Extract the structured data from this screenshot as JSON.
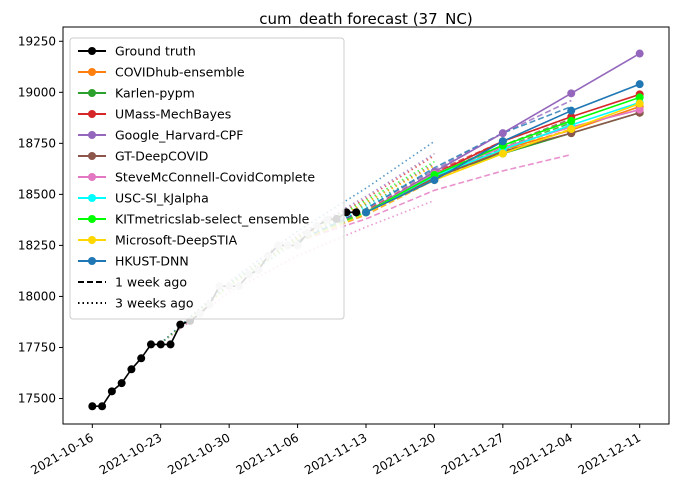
{
  "chart_data": {
    "type": "line",
    "title": "cum_death forecast (37_NC)",
    "xlabel": "",
    "ylabel": "",
    "x_ticks": [
      "2021-10-16",
      "2021-10-23",
      "2021-10-30",
      "2021-11-06",
      "2021-11-13",
      "2021-11-20",
      "2021-11-27",
      "2021-12-04",
      "2021-12-11"
    ],
    "y_ticks": [
      17500,
      17750,
      18000,
      18250,
      18500,
      18750,
      19000,
      19250
    ],
    "xlim": [
      "2021-10-13",
      "2021-12-14"
    ],
    "ylim": [
      17375,
      19320
    ],
    "legend_position": "top-left",
    "grid": false,
    "ground_truth": {
      "name": "Ground truth",
      "color": "#000000",
      "points": [
        [
          "2021-10-16",
          17462
        ],
        [
          "2021-10-17",
          17462
        ],
        [
          "2021-10-18",
          17535
        ],
        [
          "2021-10-19",
          17575
        ],
        [
          "2021-10-20",
          17643
        ],
        [
          "2021-10-21",
          17697
        ],
        [
          "2021-10-22",
          17765
        ],
        [
          "2021-10-23",
          17765
        ],
        [
          "2021-10-24",
          17765
        ],
        [
          "2021-10-25",
          17862
        ],
        [
          "2021-10-26",
          17880
        ],
        [
          "2021-10-27",
          17915
        ],
        [
          "2021-10-28",
          17960
        ],
        [
          "2021-10-29",
          18050
        ],
        [
          "2021-10-30",
          18050
        ],
        [
          "2021-10-31",
          18050
        ],
        [
          "2021-11-01",
          18107
        ],
        [
          "2021-11-02",
          18130
        ],
        [
          "2021-11-03",
          18200
        ],
        [
          "2021-11-04",
          18250
        ],
        [
          "2021-11-05",
          18250
        ],
        [
          "2021-11-06",
          18250
        ],
        [
          "2021-11-07",
          18310
        ],
        [
          "2021-11-08",
          18345
        ],
        [
          "2021-11-09",
          18375
        ],
        [
          "2021-11-10",
          18380
        ],
        [
          "2021-11-11",
          18412
        ],
        [
          "2021-11-12",
          18412
        ]
      ]
    },
    "series": [
      {
        "name": "COVIDhub-ensemble",
        "color": "#ff7f0e",
        "points": [
          [
            "2021-11-13",
            18412
          ],
          [
            "2021-11-20",
            18580
          ],
          [
            "2021-11-27",
            18720
          ],
          [
            "2021-12-04",
            18815
          ],
          [
            "2021-12-11",
            18930
          ]
        ],
        "one_week_ago": [
          [
            "2021-11-06",
            18270
          ],
          [
            "2021-11-13",
            18400
          ],
          [
            "2021-11-20",
            18570
          ],
          [
            "2021-11-27",
            18715
          ],
          [
            "2021-12-04",
            18820
          ]
        ],
        "three_weeks_ago": [
          [
            "2021-10-23",
            17770
          ],
          [
            "2021-10-30",
            18050
          ],
          [
            "2021-11-06",
            18280
          ],
          [
            "2021-11-13",
            18460
          ],
          [
            "2021-11-20",
            18640
          ]
        ]
      },
      {
        "name": "Karlen-pypm",
        "color": "#2ca02c",
        "points": [
          [
            "2021-11-13",
            18412
          ],
          [
            "2021-11-20",
            18590
          ],
          [
            "2021-11-27",
            18700
          ],
          [
            "2021-12-04",
            18800
          ],
          [
            "2021-12-11",
            18900
          ]
        ],
        "one_week_ago": [
          [
            "2021-11-06",
            18270
          ],
          [
            "2021-11-13",
            18410
          ],
          [
            "2021-11-20",
            18580
          ],
          [
            "2021-11-27",
            18730
          ],
          [
            "2021-12-04",
            18850
          ]
        ],
        "three_weeks_ago": [
          [
            "2021-10-23",
            17770
          ],
          [
            "2021-10-30",
            18050
          ],
          [
            "2021-11-06",
            18270
          ],
          [
            "2021-11-13",
            18450
          ],
          [
            "2021-11-20",
            18620
          ]
        ]
      },
      {
        "name": "UMass-MechBayes",
        "color": "#d62728",
        "points": [
          [
            "2021-11-13",
            18412
          ],
          [
            "2021-11-20",
            18600
          ],
          [
            "2021-11-27",
            18760
          ],
          [
            "2021-12-04",
            18880
          ],
          [
            "2021-12-11",
            18990
          ]
        ],
        "one_week_ago": [
          [
            "2021-11-06",
            18270
          ],
          [
            "2021-11-13",
            18420
          ],
          [
            "2021-11-20",
            18610
          ],
          [
            "2021-11-27",
            18760
          ],
          [
            "2021-12-04",
            18880
          ]
        ],
        "three_weeks_ago": [
          [
            "2021-10-23",
            17770
          ],
          [
            "2021-10-30",
            18060
          ],
          [
            "2021-11-06",
            18290
          ],
          [
            "2021-11-13",
            18480
          ],
          [
            "2021-11-20",
            18690
          ]
        ]
      },
      {
        "name": "Google_Harvard-CPF",
        "color": "#9467bd",
        "points": [
          [
            "2021-11-13",
            18412
          ],
          [
            "2021-11-20",
            18610
          ],
          [
            "2021-11-27",
            18800
          ],
          [
            "2021-12-04",
            18995
          ],
          [
            "2021-12-11",
            19190
          ]
        ],
        "one_week_ago": [
          [
            "2021-11-06",
            18270
          ],
          [
            "2021-11-13",
            18430
          ],
          [
            "2021-11-20",
            18620
          ],
          [
            "2021-11-27",
            18800
          ],
          [
            "2021-12-04",
            18960
          ]
        ],
        "three_weeks_ago": [
          [
            "2021-10-23",
            17770
          ],
          [
            "2021-10-30",
            18060
          ],
          [
            "2021-11-06",
            18300
          ],
          [
            "2021-11-13",
            18490
          ],
          [
            "2021-11-20",
            18700
          ]
        ]
      },
      {
        "name": "GT-DeepCOVID",
        "color": "#8c564b",
        "points": [
          [
            "2021-11-13",
            18412
          ],
          [
            "2021-11-20",
            18580
          ],
          [
            "2021-11-27",
            18710
          ],
          [
            "2021-12-04",
            18800
          ],
          [
            "2021-12-11",
            18900
          ]
        ],
        "one_week_ago": [
          [
            "2021-11-06",
            18270
          ],
          [
            "2021-11-13",
            18410
          ],
          [
            "2021-11-20",
            18600
          ],
          [
            "2021-11-27",
            18740
          ],
          [
            "2021-12-04",
            18870
          ]
        ],
        "three_weeks_ago": [
          [
            "2021-10-23",
            17770
          ],
          [
            "2021-10-30",
            18050
          ],
          [
            "2021-11-06",
            18280
          ],
          [
            "2021-11-13",
            18460
          ],
          [
            "2021-11-20",
            18650
          ]
        ]
      },
      {
        "name": "SteveMcConnell-CovidComplete",
        "color": "#e377c2",
        "points": [
          [
            "2021-11-13",
            18412
          ],
          [
            "2021-11-20",
            18600
          ],
          [
            "2021-11-27",
            18730
          ],
          [
            "2021-12-04",
            18830
          ],
          [
            "2021-12-11",
            18915
          ]
        ],
        "one_week_ago": [
          [
            "2021-11-06",
            18270
          ],
          [
            "2021-11-13",
            18380
          ],
          [
            "2021-11-20",
            18520
          ],
          [
            "2021-11-27",
            18615
          ],
          [
            "2021-12-04",
            18695
          ]
        ],
        "three_weeks_ago": [
          [
            "2021-10-23",
            17770
          ],
          [
            "2021-10-30",
            18020
          ],
          [
            "2021-11-06",
            18200
          ],
          [
            "2021-11-13",
            18340
          ],
          [
            "2021-11-20",
            18470
          ]
        ]
      },
      {
        "name": "USC-SI_kJalpha",
        "color": "#00ffff",
        "points": [
          [
            "2021-11-13",
            18412
          ],
          [
            "2021-11-20",
            18590
          ],
          [
            "2021-11-27",
            18720
          ],
          [
            "2021-12-04",
            18840
          ],
          [
            "2021-12-11",
            18950
          ]
        ],
        "one_week_ago": [
          [
            "2021-11-06",
            18270
          ],
          [
            "2021-11-13",
            18410
          ],
          [
            "2021-11-20",
            18580
          ],
          [
            "2021-11-27",
            18720
          ],
          [
            "2021-12-04",
            18840
          ]
        ],
        "three_weeks_ago": [
          [
            "2021-10-23",
            17770
          ],
          [
            "2021-10-30",
            18050
          ],
          [
            "2021-11-06",
            18270
          ],
          [
            "2021-11-13",
            18440
          ],
          [
            "2021-11-20",
            18620
          ]
        ]
      },
      {
        "name": "KITmetricslab-select_ensemble",
        "color": "#00ff00",
        "points": [
          [
            "2021-11-13",
            18412
          ],
          [
            "2021-11-20",
            18595
          ],
          [
            "2021-11-27",
            18740
          ],
          [
            "2021-12-04",
            18860
          ],
          [
            "2021-12-11",
            18975
          ]
        ],
        "one_week_ago": [
          [
            "2021-11-06",
            18270
          ],
          [
            "2021-11-13",
            18415
          ],
          [
            "2021-11-20",
            18590
          ],
          [
            "2021-11-27",
            18740
          ],
          [
            "2021-12-04",
            18860
          ]
        ],
        "three_weeks_ago": [
          [
            "2021-10-23",
            17770
          ],
          [
            "2021-10-30",
            18060
          ],
          [
            "2021-11-06",
            18290
          ],
          [
            "2021-11-13",
            18470
          ],
          [
            "2021-11-20",
            18660
          ]
        ]
      },
      {
        "name": "Microsoft-DeepSTIA",
        "color": "#ffd700",
        "points": [
          [
            "2021-11-13",
            18412
          ],
          [
            "2021-11-20",
            18570
          ],
          [
            "2021-11-27",
            18700
          ],
          [
            "2021-12-04",
            18820
          ],
          [
            "2021-12-11",
            18945
          ]
        ],
        "one_week_ago": [
          [
            "2021-11-06",
            18270
          ],
          [
            "2021-11-13",
            18405
          ],
          [
            "2021-11-20",
            18570
          ],
          [
            "2021-11-27",
            18710
          ],
          [
            "2021-12-04",
            18840
          ]
        ],
        "three_weeks_ago": [
          [
            "2021-10-23",
            17770
          ],
          [
            "2021-10-30",
            18050
          ],
          [
            "2021-11-06",
            18280
          ],
          [
            "2021-11-13",
            18460
          ],
          [
            "2021-11-20",
            18640
          ]
        ]
      },
      {
        "name": "HKUST-DNN",
        "color": "#1f77b4",
        "points": [
          [
            "2021-11-13",
            18412
          ],
          [
            "2021-11-20",
            18570
          ],
          [
            "2021-11-27",
            18760
          ],
          [
            "2021-12-04",
            18910
          ],
          [
            "2021-12-11",
            19040
          ]
        ],
        "one_week_ago": [
          [
            "2021-11-06",
            18270
          ],
          [
            "2021-11-13",
            18430
          ],
          [
            "2021-11-20",
            18630
          ],
          [
            "2021-11-27",
            18800
          ],
          [
            "2021-12-04",
            18930
          ]
        ],
        "three_weeks_ago": [
          [
            "2021-10-23",
            17770
          ],
          [
            "2021-10-30",
            18070
          ],
          [
            "2021-11-06",
            18320
          ],
          [
            "2021-11-13",
            18530
          ],
          [
            "2021-11-20",
            18760
          ]
        ]
      }
    ],
    "legend_extra": [
      {
        "label": "1 week ago",
        "style": "dashed"
      },
      {
        "label": "3 weeks ago",
        "style": "dotted"
      }
    ]
  }
}
